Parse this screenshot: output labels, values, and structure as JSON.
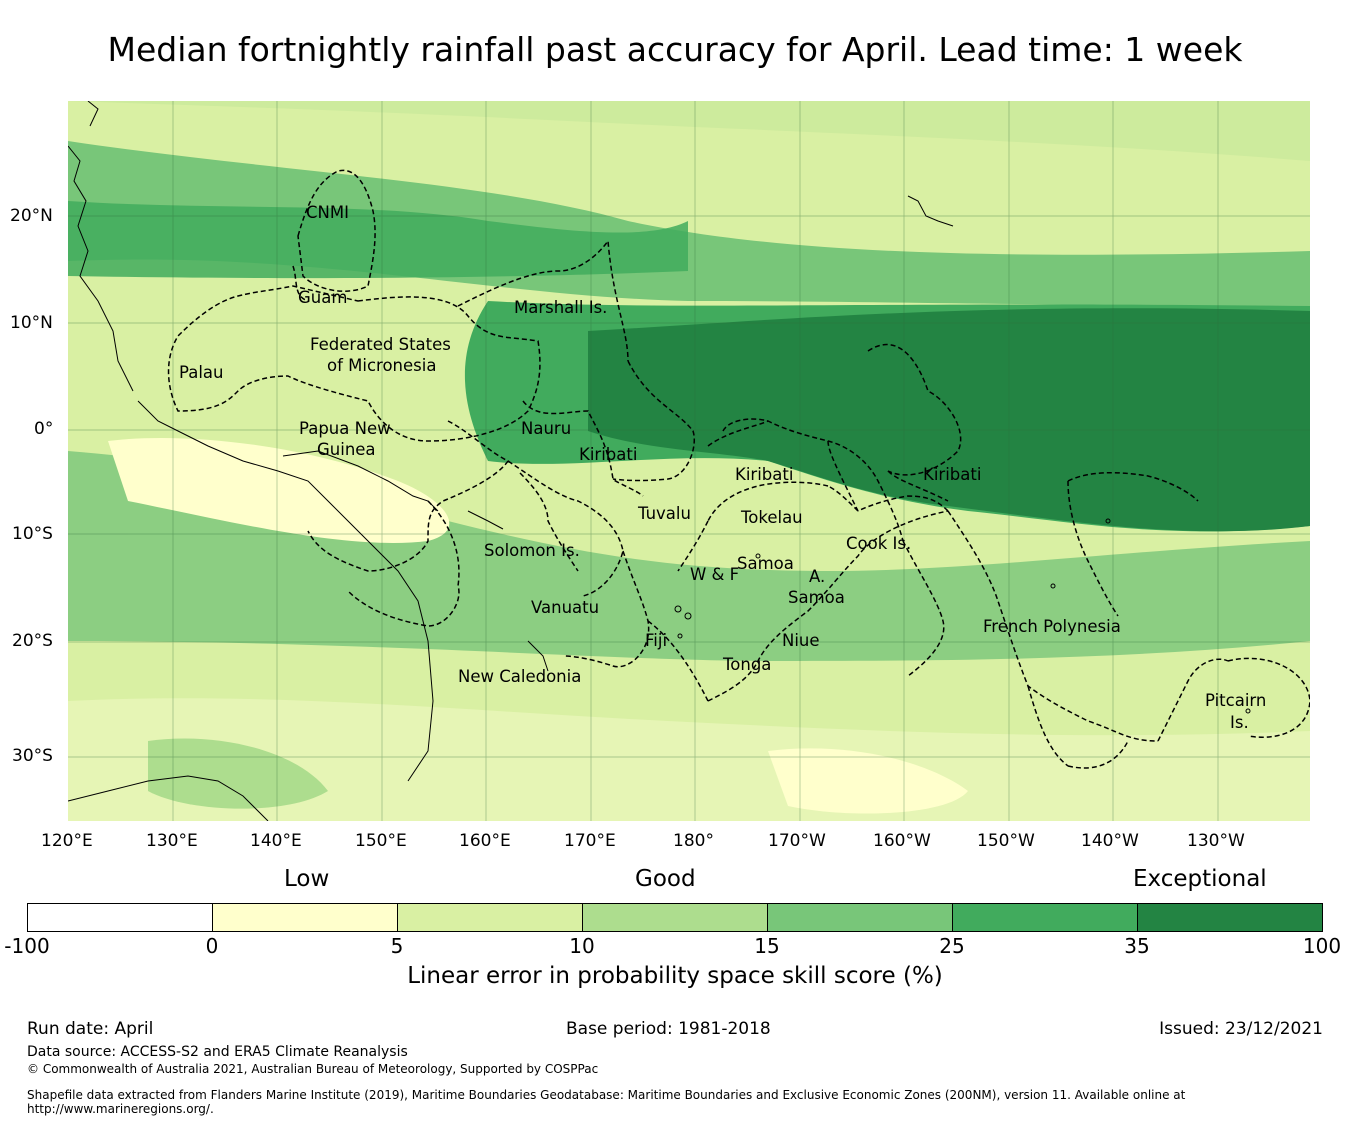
{
  "title": "Median fortnightly rainfall past accuracy for April. Lead time: 1 week",
  "map": {
    "lat_labels": [
      "20°N",
      "10°N",
      "0°",
      "10°S",
      "20°S",
      "30°S"
    ],
    "lon_labels": [
      "120°E",
      "130°E",
      "140°E",
      "150°E",
      "160°E",
      "170°E",
      "180°",
      "170°W",
      "160°W",
      "150°W",
      "140°W",
      "130°W"
    ],
    "regions": [
      "CNMI",
      "Guam",
      "Marshall Is.",
      "Federated States",
      "of Micronesia",
      "Palau",
      "Papua New",
      "Guinea",
      "Nauru",
      "Kiribati",
      "Kiribati",
      "Kiribati",
      "Tuvalu",
      "Tokelau",
      "Cook Is.",
      "Solomon Is.",
      "W & F",
      "Samoa",
      "A.",
      "Samoa",
      "Vanuatu",
      "Fiji",
      "Niue",
      "Tonga",
      "New Caledonia",
      "French Polynesia",
      "Pitcairn",
      "Is."
    ]
  },
  "legend": {
    "categories": [
      "Low",
      "Good",
      "Exceptional"
    ],
    "ticks": [
      "-100",
      "0",
      "5",
      "10",
      "15",
      "25",
      "35",
      "100"
    ],
    "colors": [
      "#ffffff",
      "#ffffcc",
      "#d9f0a3",
      "#addd8e",
      "#78c679",
      "#41ab5d",
      "#238443"
    ],
    "title": "Linear error in probability space skill score (%)"
  },
  "footer": {
    "run_date": "Run date: April",
    "base_period": "Base period: 1981-2018",
    "issued": "Issued: 23/12/2021",
    "data_source": "Data source: ACCESS-S2 and ERA5 Climate Reanalysis",
    "copyright": "© Commonwealth of Australia 2021, Australian Bureau of Meteorology, Supported by COSPPac",
    "shapefile": "Shapefile data extracted from Flanders Marine Institute (2019), Maritime Boundaries Geodatabase: Maritime Boundaries and Exclusive Economic Zones (200NM), version 11. Available online at http://www.marineregions.org/."
  }
}
